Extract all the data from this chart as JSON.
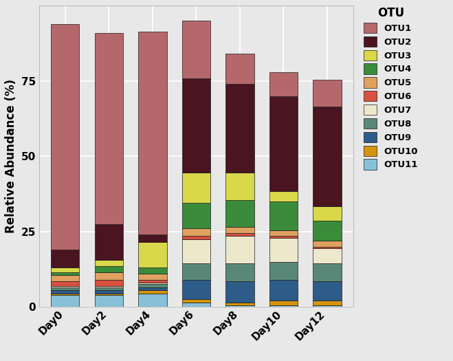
{
  "categories": [
    "Day0",
    "Day2",
    "Day4",
    "Day6",
    "Day8",
    "Day10",
    "Day12"
  ],
  "otus_order": [
    "OTU11",
    "OTU10",
    "OTU9",
    "OTU8",
    "OTU7",
    "OTU6",
    "OTU5",
    "OTU4",
    "OTU3",
    "OTU2",
    "OTU1"
  ],
  "colors": {
    "OTU1": "#B5686B",
    "OTU2": "#4A1420",
    "OTU3": "#D8D84A",
    "OTU4": "#3A8C3A",
    "OTU5": "#E0A060",
    "OTU6": "#D85040",
    "OTU7": "#EDE8CC",
    "OTU8": "#5A8878",
    "OTU9": "#2E5C88",
    "OTU10": "#D4950A",
    "OTU11": "#88C0D8"
  },
  "data": {
    "OTU11": [
      4.0,
      4.0,
      4.5,
      1.5,
      0.5,
      0.5,
      0.5
    ],
    "OTU10": [
      0.5,
      0.5,
      1.0,
      1.0,
      1.0,
      1.5,
      1.5
    ],
    "OTU9": [
      1.0,
      1.0,
      1.0,
      6.5,
      7.0,
      7.0,
      6.5
    ],
    "OTU8": [
      1.0,
      1.0,
      1.0,
      5.5,
      6.0,
      6.0,
      6.0
    ],
    "OTU7": [
      0.5,
      0.5,
      0.5,
      8.0,
      9.0,
      8.0,
      5.0
    ],
    "OTU6": [
      1.5,
      2.0,
      1.0,
      1.0,
      1.0,
      0.5,
      0.5
    ],
    "OTU5": [
      2.0,
      2.5,
      2.0,
      2.5,
      2.0,
      2.0,
      2.0
    ],
    "OTU4": [
      1.0,
      2.0,
      2.0,
      8.5,
      9.0,
      9.5,
      6.5
    ],
    "OTU3": [
      1.5,
      2.0,
      8.5,
      10.0,
      9.0,
      3.5,
      5.0
    ],
    "OTU2": [
      6.0,
      12.0,
      2.5,
      31.5,
      29.5,
      31.5,
      33.0
    ],
    "OTU1": [
      75.0,
      63.5,
      67.5,
      19.0,
      10.0,
      8.0,
      9.0
    ]
  },
  "ylabel": "Relative Abundance (%)",
  "legend_title": "OTU",
  "legend_otus": [
    "OTU1",
    "OTU2",
    "OTU3",
    "OTU4",
    "OTU5",
    "OTU6",
    "OTU7",
    "OTU8",
    "OTU9",
    "OTU10",
    "OTU11"
  ],
  "ylim": [
    0,
    100
  ],
  "yticks": [
    0,
    25,
    50,
    75
  ],
  "plot_bg": "#E8E8E8",
  "fig_bg": "#E8E8E8",
  "grid_color": "#FFFFFF",
  "bar_width": 0.65,
  "edgecolor": "#1a1a1a"
}
